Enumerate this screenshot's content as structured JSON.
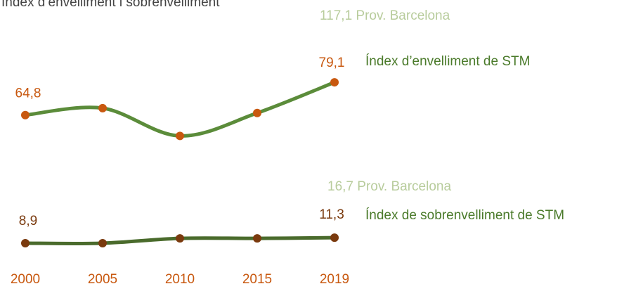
{
  "chart_data": {
    "type": "line",
    "title": "Índex d’envelliment i sobrenvelliment",
    "categories": [
      "2000",
      "2005",
      "2010",
      "2015",
      "2019"
    ],
    "ylim": [
      0,
      115
    ],
    "series": [
      {
        "name": "Índex d’envelliment de STM",
        "color": "#5b8c3a",
        "marker_color": "#c8580f",
        "values": [
          64.8,
          67.8,
          55.7,
          65.7,
          79.1
        ],
        "value_labels": [
          "64,8",
          null,
          null,
          null,
          "79,1"
        ],
        "reference": "117,1 Prov. Barcelona"
      },
      {
        "name": "Índex de sobrenvelliment de STM",
        "color": "#4a6b2c",
        "marker_color": "#7a3a0e",
        "values": [
          8.9,
          8.9,
          11.0,
          11.0,
          11.3
        ],
        "value_labels": [
          "8,9",
          null,
          null,
          null,
          "11,3"
        ],
        "reference": "16,7 Prov. Barcelona"
      }
    ]
  }
}
